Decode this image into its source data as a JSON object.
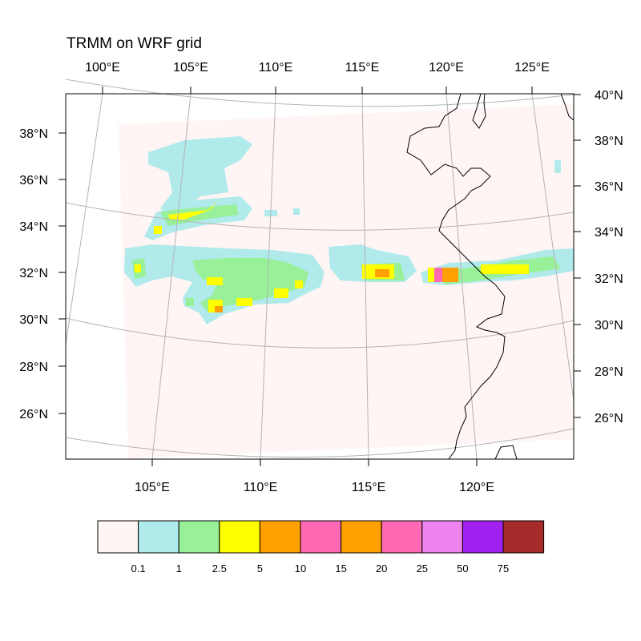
{
  "title": "TRMM on WRF grid",
  "top_lon_labels": [
    "100°E",
    "105°E",
    "110°E",
    "115°E",
    "120°E",
    "125°E"
  ],
  "bottom_lon_labels": [
    "105°E",
    "110°E",
    "115°E",
    "120°E"
  ],
  "left_lat_labels": [
    "26°N",
    "28°N",
    "30°N",
    "32°N",
    "34°N",
    "36°N",
    "38°N"
  ],
  "right_lat_labels": [
    "26°N",
    "28°N",
    "30°N",
    "32°N",
    "34°N",
    "36°N",
    "38°N",
    "40°N"
  ],
  "colorbar": {
    "labels": [
      "0.1",
      "1",
      "2.5",
      "5",
      "10",
      "15",
      "20",
      "25",
      "50",
      "75"
    ],
    "colors": [
      "#fff5f5",
      "#b0eaea",
      "#98f098",
      "#ffff00",
      "#ffa000",
      "#ff69b4",
      "#ffa000",
      "#ff69b4",
      "#ee82ee",
      "#a020f0",
      "#a52a2a"
    ]
  },
  "data_domain_color": "#fff5f5",
  "coastline_color": "#000000",
  "gridline_color": "#b4b4b4"
}
